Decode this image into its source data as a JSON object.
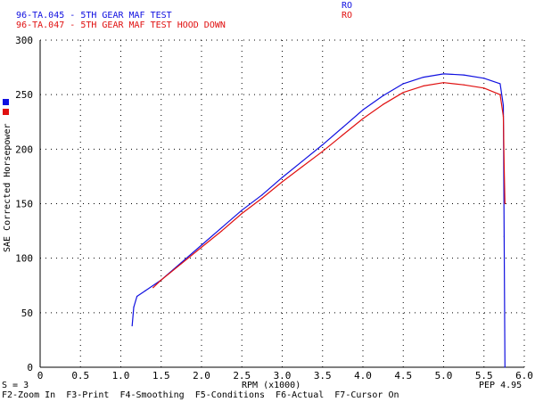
{
  "legend": [
    {
      "run": "96-TA.045",
      "sep": "-",
      "desc": "5TH GEAR MAF TEST",
      "tag": "RO",
      "color": "#1010e0"
    },
    {
      "run": "96-TA.047",
      "sep": "-",
      "desc": "5TH GEAR MAF TEST HOOD DOWN",
      "tag": "RO",
      "color": "#e01010"
    }
  ],
  "chart_data": {
    "type": "line",
    "ylabel": "SAE Corrected Horsepower",
    "xlabel": "RPM (x1000)",
    "xlim": [
      0,
      6.0
    ],
    "ylim": [
      0,
      300
    ],
    "x_ticks": [
      "0",
      "0.5",
      "1.0",
      "1.5",
      "2.0",
      "2.5",
      "3.0",
      "3.5",
      "4.0",
      "4.5",
      "5.0",
      "5.5",
      "6.0"
    ],
    "y_ticks": [
      "0",
      "50",
      "100",
      "150",
      "200",
      "250",
      "300"
    ],
    "grid": "dotted",
    "series": [
      {
        "name": "96-TA.045",
        "color": "#1010e0",
        "x": [
          1.14,
          1.16,
          1.2,
          1.3,
          1.5,
          1.75,
          2.0,
          2.25,
          2.5,
          2.75,
          3.0,
          3.25,
          3.5,
          3.75,
          4.0,
          4.25,
          4.5,
          4.75,
          5.0,
          5.25,
          5.5,
          5.7,
          5.74,
          5.75,
          5.76
        ],
        "y": [
          38,
          55,
          65,
          70,
          80,
          96,
          112,
          128,
          144,
          158,
          174,
          189,
          204,
          220,
          236,
          249,
          260,
          266,
          269,
          268,
          265,
          260,
          240,
          120,
          0
        ]
      },
      {
        "name": "96-TA.047",
        "color": "#e01010",
        "x": [
          1.4,
          1.5,
          1.75,
          2.0,
          2.25,
          2.5,
          2.75,
          3.0,
          3.25,
          3.5,
          3.75,
          4.0,
          4.25,
          4.5,
          4.75,
          5.0,
          5.25,
          5.5,
          5.7,
          5.74,
          5.75,
          5.76
        ],
        "y": [
          73,
          80,
          95,
          110,
          125,
          141,
          155,
          170,
          184,
          198,
          213,
          228,
          241,
          252,
          258,
          261,
          259,
          256,
          250,
          230,
          185,
          150
        ]
      }
    ]
  },
  "footer": {
    "smoothing": "S = 3",
    "rpm_label": "RPM (x1000)",
    "pep": "PEP 4.95",
    "keys": "F2-Zoom In  F3-Print  F4-Smoothing  F5-Conditions  F6-Actual  F7-Cursor On"
  }
}
